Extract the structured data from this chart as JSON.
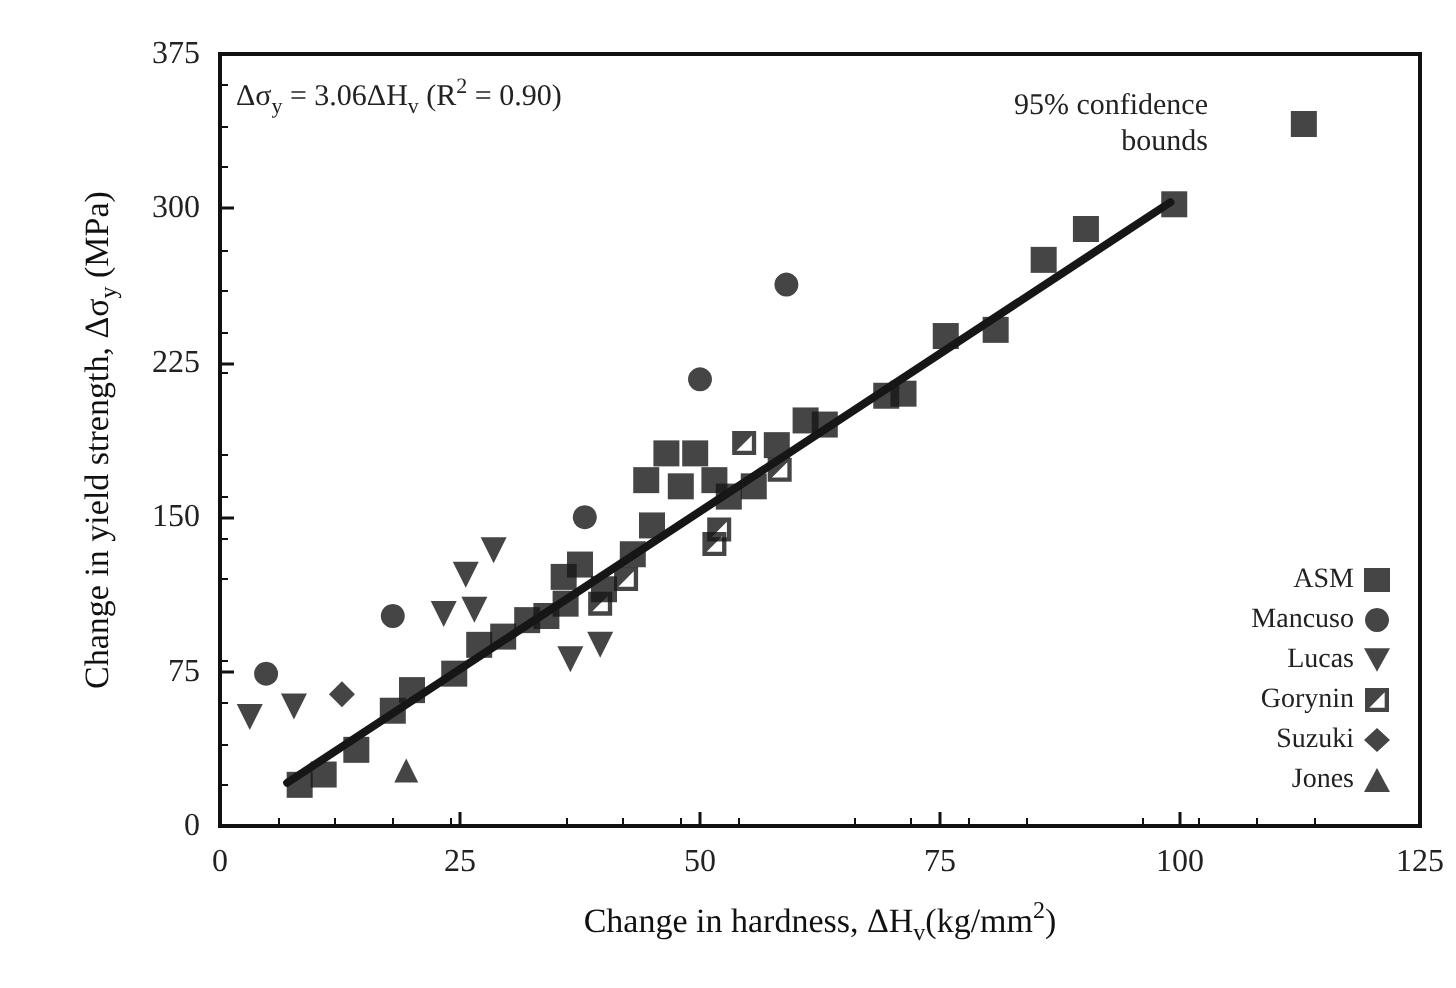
{
  "chart_data": {
    "type": "scatter",
    "xlabel": "Change in hardness, ΔH$_{v}$(kg/mm$^{2}$)",
    "ylabel": "Change in yield strength, Δσ$_{y}$ (MPa)",
    "xlim": [
      0,
      125
    ],
    "xticks": [
      0,
      25,
      50,
      75,
      100,
      125
    ],
    "ylim": [
      0,
      375
    ],
    "yticks": [
      0,
      75,
      150,
      225,
      300,
      375
    ],
    "grid": false,
    "legend": "bottom right",
    "annotations": [
      "Δσ$_{y}$ = 3.06ΔH$_{v}$ (R$^{2}$ = 0.90)",
      "95% confidence\nbounds"
    ],
    "series": [
      {
        "name": "ASM",
        "color": "#161616",
        "marker": "square",
        "x": [
          8.3,
          10.8,
          14.2,
          18,
          20,
          24.4,
          27,
          29.5,
          32,
          34,
          35.8,
          37.5,
          36,
          40,
          43,
          44.4,
          45,
          46.5,
          48,
          49.5,
          51.5,
          53,
          55.6,
          58,
          61,
          63,
          69.4,
          71.2,
          75.6,
          80.8,
          85.8,
          90.2,
          99.4,
          112.9
        ],
        "values": [
          20,
          25,
          37,
          56,
          66,
          74,
          88,
          92,
          100,
          102,
          121,
          127,
          108,
          115,
          132,
          168,
          146,
          181,
          165,
          181,
          168,
          160,
          165,
          185,
          197,
          195,
          209,
          210,
          238,
          241,
          275,
          290,
          302,
          341
        ]
      },
      {
        "name": "Mancuso",
        "color": "#161616",
        "marker": "circle",
        "x": [
          4.8,
          18,
          38,
          50,
          59
        ],
        "values": [
          74,
          102,
          150,
          217,
          263
        ]
      },
      {
        "name": "Lucas",
        "color": "#161616",
        "marker": "triangle-down",
        "x": [
          3.1,
          7.7,
          25.6,
          28.5,
          23.3,
          26.5,
          36.5,
          39.6
        ],
        "values": [
          53,
          58,
          122,
          134,
          103,
          105,
          81,
          88
        ]
      },
      {
        "name": "Gorynin",
        "color": "#161616",
        "x": [
          39.6,
          42.3,
          51.5,
          52,
          54.6,
          58.3
        ],
        "values": [
          108,
          120,
          137,
          144,
          186,
          173
        ]
      },
      {
        "name": "Suzuki",
        "color": "#161616",
        "marker": "diamond",
        "x": [
          12.7
        ],
        "values": [
          64
        ]
      },
      {
        "name": "Jones",
        "color": "#161616",
        "marker": "triangle",
        "x": [
          19.4
        ],
        "values": [
          27
        ]
      },
      {
        "type": "line",
        "color": "#161616",
        "marker": "none",
        "x": [
          7,
          99
        ],
        "values": [
          21,
          303
        ]
      }
    ]
  }
}
